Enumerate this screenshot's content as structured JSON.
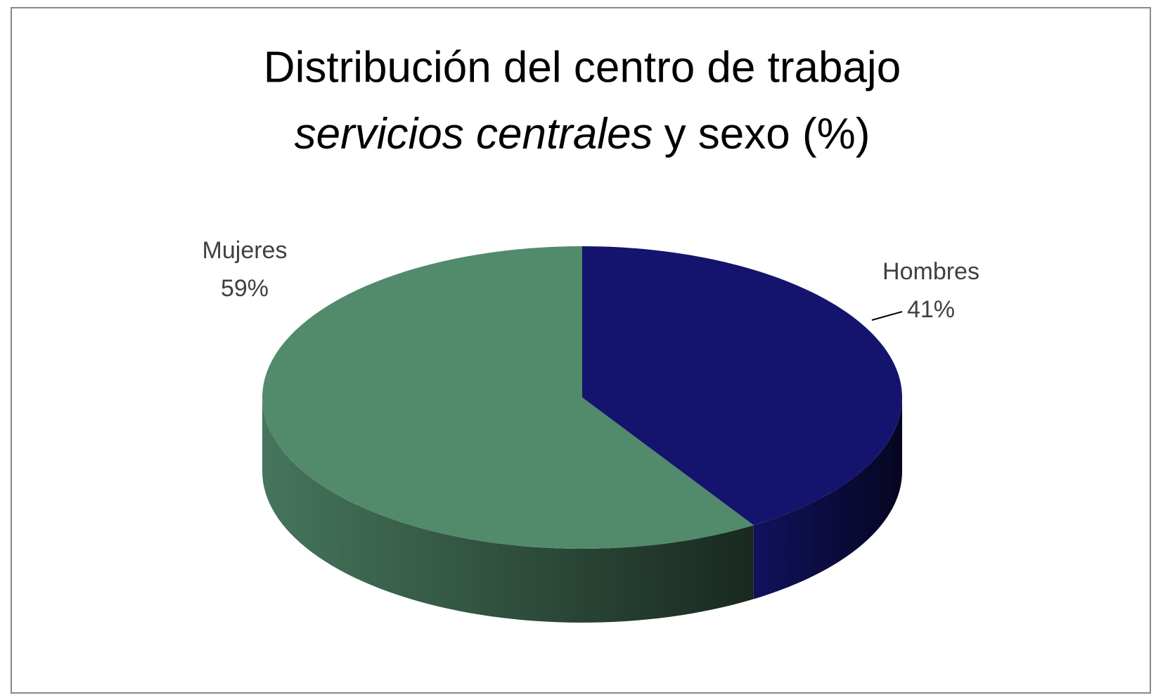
{
  "chart_data": {
    "type": "pie3d",
    "title": [
      "Distribución del centro de trabajo",
      "servicios centrales",
      "y sexo (%)"
    ],
    "categories": [
      "Hombres",
      "Mujeres"
    ],
    "values": [
      41,
      59
    ],
    "value_labels": [
      "41%",
      "59%"
    ],
    "colors": [
      "#14146e",
      "#528a6c"
    ]
  }
}
